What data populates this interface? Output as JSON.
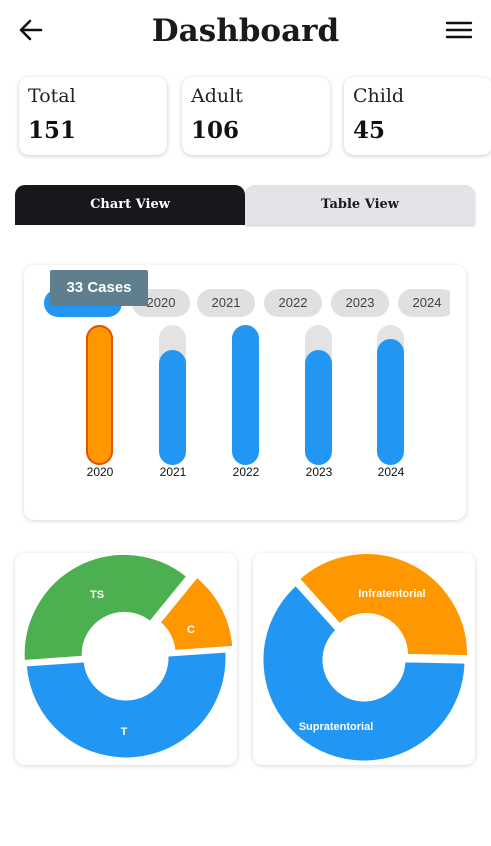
{
  "header": {
    "title": "Dashboard",
    "back_icon": "arrow-left-icon",
    "menu_icon": "hamburger-menu-icon"
  },
  "stats": [
    {
      "label": "Total",
      "value": "151"
    },
    {
      "label": "Adult",
      "value": "106"
    },
    {
      "label": "Child",
      "value": "45"
    }
  ],
  "tabs": {
    "chart_view": "Chart View",
    "table_view": "Table View",
    "active": "chart_view"
  },
  "year_chips": [
    "",
    "2020",
    "2021",
    "2022",
    "2023",
    "2024"
  ],
  "tooltip": "33 Cases",
  "chart_data": [
    {
      "type": "bar",
      "categories": [
        "2020",
        "2021",
        "2022",
        "2023",
        "2024"
      ],
      "values": [
        1.0,
        0.82,
        1.0,
        0.82,
        0.9
      ],
      "selected_category": "2020",
      "colors": {
        "bar": "#2196f3",
        "track": "#e3e3e3",
        "selected": "#ff9800"
      }
    },
    {
      "type": "pie",
      "labels": [
        "TS",
        "C",
        "T"
      ],
      "values": [
        37,
        13,
        50
      ],
      "colors": [
        "#4caf50",
        "#ff9800",
        "#2196f3"
      ]
    },
    {
      "type": "pie",
      "labels": [
        "Infratentorial",
        "Supratentorial"
      ],
      "values": [
        37,
        63
      ],
      "colors": [
        "#ff9800",
        "#2196f3"
      ]
    }
  ]
}
